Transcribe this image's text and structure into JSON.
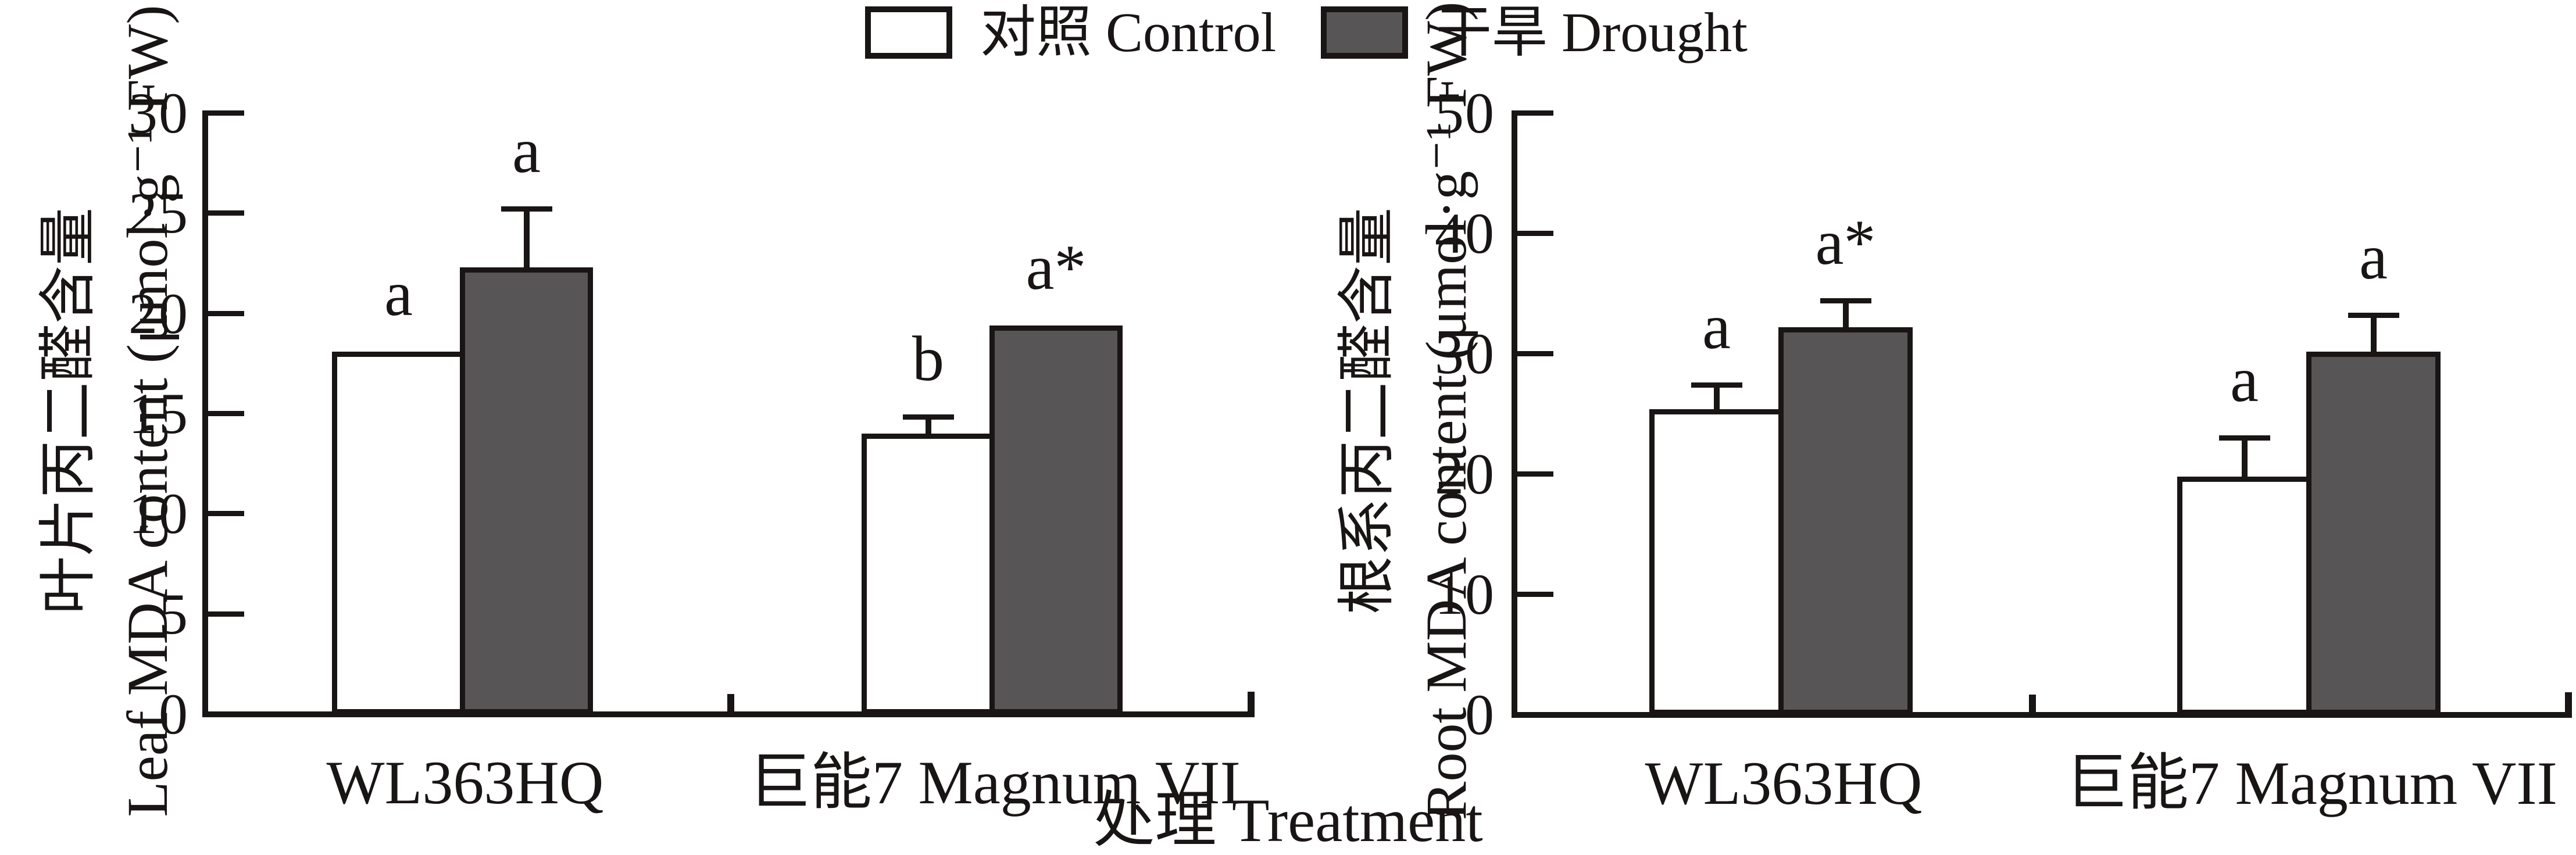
{
  "ui": {
    "background": "#ffffff",
    "line_color": "#1a1515",
    "legend": [
      {
        "label": "对照 Control",
        "color": "#ffffff"
      },
      {
        "label": "干旱 Drought",
        "color": "#575555"
      }
    ],
    "xlabel": "处理 Treatment"
  },
  "chart_data": [
    {
      "type": "bar",
      "panel": "leaf-mda",
      "title_zh": "叶片丙二醛含量",
      "title_en": "Leaf MDA content (μmol·g⁻¹ FW)",
      "ylabel": "叶片丙二醛含量 Leaf MDA content (μmol·g⁻¹ FW)",
      "xlabel": "处理 Treatment",
      "ylim": [
        0,
        30
      ],
      "yticks": [
        0,
        5,
        10,
        15,
        20,
        25,
        30
      ],
      "grid": false,
      "legend_position": "top-center",
      "categories": [
        "WL363HQ",
        "巨能7 Magnum VII"
      ],
      "series": [
        {
          "name": "对照 Control",
          "color": "#ffffff",
          "values": [
            18.1,
            14.0
          ],
          "errors": [
            null,
            0.7
          ],
          "sig_labels": [
            "a",
            "b"
          ]
        },
        {
          "name": "干旱 Drought",
          "color": "#575555",
          "values": [
            22.3,
            19.4
          ],
          "errors": [
            2.8,
            null
          ],
          "sig_labels": [
            "a",
            "a*"
          ]
        }
      ]
    },
    {
      "type": "bar",
      "panel": "root-mda",
      "title_zh": "根系丙二醛含量",
      "title_en": "Root MDA content (μmol·g⁻¹ FW)",
      "ylabel": "根系丙二醛含量 Root MDA content (μmol·g⁻¹ FW)",
      "xlabel": "处理 Treatment",
      "ylim": [
        0,
        50
      ],
      "yticks": [
        0,
        10,
        20,
        30,
        40,
        50
      ],
      "grid": false,
      "legend_position": "top-center",
      "categories": [
        "WL363HQ",
        "巨能7 Magnum VII"
      ],
      "series": [
        {
          "name": "对照 Control",
          "color": "#ffffff",
          "values": [
            25.4,
            19.8
          ],
          "errors": [
            1.8,
            3.0
          ],
          "sig_labels": [
            "a",
            "a"
          ]
        },
        {
          "name": "干旱 Drought",
          "color": "#575555",
          "values": [
            32.2,
            30.2
          ],
          "errors": [
            2.0,
            2.8
          ],
          "sig_labels": [
            "a*",
            "a"
          ]
        }
      ]
    }
  ]
}
